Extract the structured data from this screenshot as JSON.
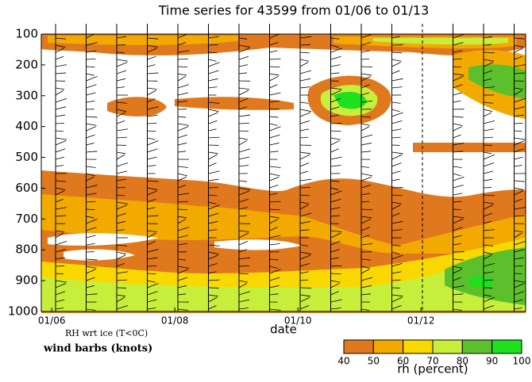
{
  "chart_data": {
    "type": "contour",
    "title": "Time series for 43599 from 01/06 to 01/13",
    "x_label": "date",
    "note": "RH wrt ice (T<0C)",
    "barb_label": "wind barbs (knots)",
    "colorbar_label": "rh (percent)",
    "ylim": [
      1000,
      100
    ],
    "yticks": [
      100,
      200,
      300,
      400,
      500,
      600,
      700,
      800,
      900,
      1000
    ],
    "xlim": [
      5.83,
      13.7
    ],
    "xticks": [
      {
        "value": 6,
        "label": "01/06"
      },
      {
        "value": 8,
        "label": "01/08"
      },
      {
        "value": 10,
        "label": "01/10"
      },
      {
        "value": 12,
        "label": "01/12"
      }
    ],
    "levels": [
      40,
      50,
      60,
      70,
      80,
      90,
      100
    ],
    "colors": [
      "#e0781e",
      "#f2aa00",
      "#f8d800",
      "#c8ee3c",
      "#5cc02c",
      "#1ee01e"
    ]
  }
}
